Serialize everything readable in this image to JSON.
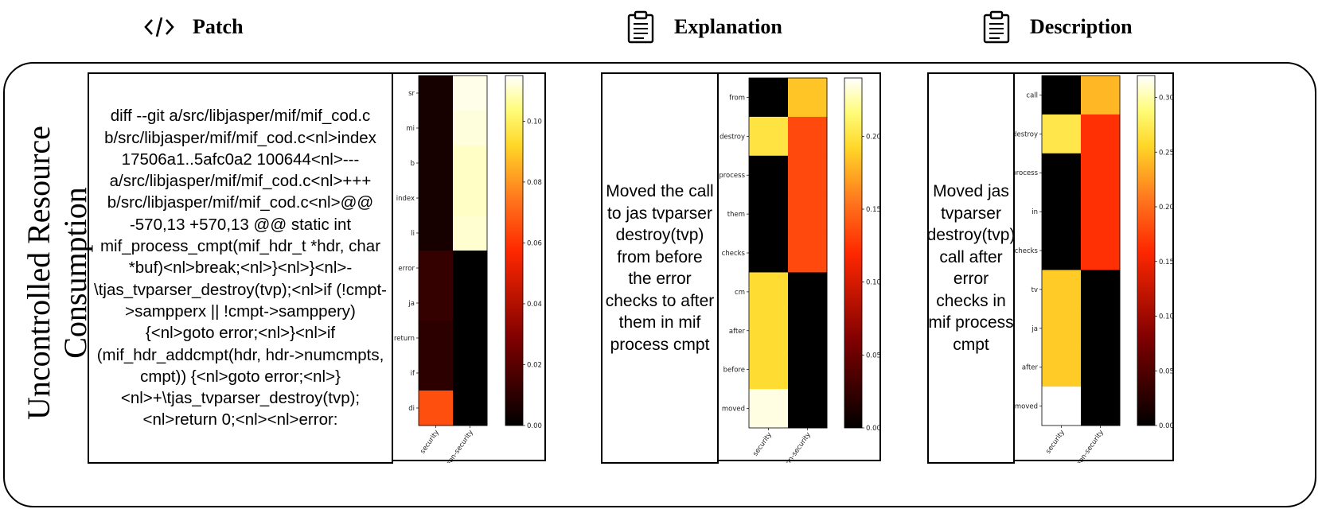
{
  "headers": {
    "patch": {
      "label": "Patch",
      "icon": "code-icon"
    },
    "explanation": {
      "label": "Explanation",
      "icon": "clipboard-icon"
    },
    "description": {
      "label": "Description",
      "icon": "clipboard-icon"
    }
  },
  "row_title_lines": [
    "Uncontrolled Resource",
    "Consumption"
  ],
  "patch_text": "diff --git a/src/libjasper/mif/mif_cod.c b/src/libjasper/mif/mif_cod.c<nl>index 17506a1..5afc0a2 100644<nl>--- a/src/libjasper/mif/mif_cod.c<nl>+++ b/src/libjasper/mif/mif_cod.c<nl>@@ -570,13 +570,13 @@ static int mif_process_cmpt(mif_hdr_t *hdr, char *buf)<nl>break;<nl>}<nl>}<nl>-\\tjas_tvparser_destroy(tvp);<nl>if (!cmpt->sampperx || !cmpt->samppery) {<nl>goto error;<nl>}<nl>if (mif_hdr_addcmpt(hdr, hdr->numcmpts, cmpt)) {<nl>goto error;<nl>}<nl>+\\tjas_tvparser_destroy(tvp);<nl>return 0;<nl><nl>error:",
  "explanation_text": "Moved the call to jas tvparser destroy(tvp) from before the error checks to after them in mif process cmpt",
  "description_text": "Moved jas tvparser destroy(tvp) call after error checks in mif process cmpt",
  "chart_data": [
    {
      "type": "heatmap",
      "name": "patch",
      "x_categories": [
        "security",
        "non-security"
      ],
      "y_categories": [
        "sr",
        "mi",
        "b",
        "index",
        "li",
        "error",
        "ja",
        "return",
        "if",
        "di"
      ],
      "values": [
        [
          0.005,
          0.113
        ],
        [
          0.005,
          0.112
        ],
        [
          0.005,
          0.11
        ],
        [
          0.005,
          0.11
        ],
        [
          0.005,
          0.111
        ],
        [
          0.012,
          0.0
        ],
        [
          0.012,
          0.0
        ],
        [
          0.01,
          0.0
        ],
        [
          0.01,
          0.0
        ],
        [
          0.066,
          0.0
        ]
      ],
      "colorbar_ticks": [
        "0.00",
        "0.02",
        "0.04",
        "0.06",
        "0.08",
        "0.10"
      ],
      "vmin": 0,
      "vmax": 0.115,
      "colormap": "afmhot"
    },
    {
      "type": "heatmap",
      "name": "explanation",
      "x_categories": [
        "security",
        "non-security"
      ],
      "y_categories": [
        "from",
        "destroy",
        "process",
        "them",
        "checks",
        "cm",
        "after",
        "before",
        "moved"
      ],
      "values": [
        [
          0.0,
          0.185
        ],
        [
          0.2,
          0.135
        ],
        [
          0.0,
          0.135
        ],
        [
          0.0,
          0.135
        ],
        [
          0.0,
          0.135
        ],
        [
          0.195,
          0.0
        ],
        [
          0.195,
          0.0
        ],
        [
          0.195,
          0.0
        ],
        [
          0.235,
          0.0
        ]
      ],
      "colorbar_ticks": [
        "0.00",
        "0.05",
        "0.10",
        "0.15",
        "0.20"
      ],
      "vmin": 0,
      "vmax": 0.24,
      "colormap": "afmhot"
    },
    {
      "type": "heatmap",
      "name": "description",
      "x_categories": [
        "security",
        "non-security"
      ],
      "y_categories": [
        "call",
        "destroy",
        "process",
        "in",
        "checks",
        "tv",
        "ja",
        "after",
        "moved"
      ],
      "values": [
        [
          0.0,
          0.24
        ],
        [
          0.27,
          0.165
        ],
        [
          0.0,
          0.165
        ],
        [
          0.0,
          0.165
        ],
        [
          0.0,
          0.165
        ],
        [
          0.25,
          0.0
        ],
        [
          0.25,
          0.0
        ],
        [
          0.25,
          0.0
        ],
        [
          0.32,
          0.0
        ]
      ],
      "colorbar_ticks": [
        "0.00",
        "0.05",
        "0.10",
        "0.15",
        "0.20",
        "0.25",
        "0.30"
      ],
      "vmin": 0,
      "vmax": 0.32,
      "colormap": "afmhot"
    }
  ]
}
